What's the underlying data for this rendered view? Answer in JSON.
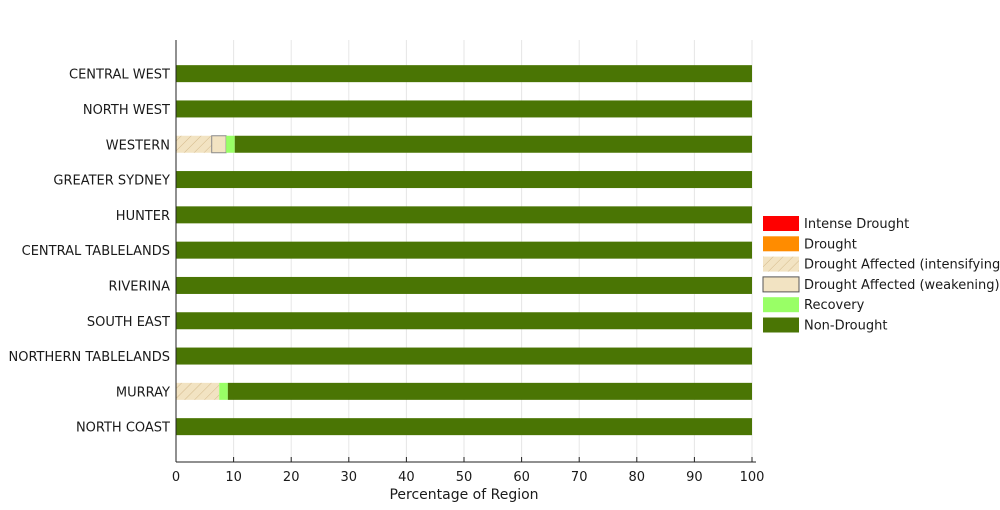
{
  "chart_data": {
    "type": "bar",
    "orientation": "horizontal",
    "stacked": true,
    "xlabel": "Percentage of Region",
    "ylabel": "",
    "xlim": [
      0,
      100
    ],
    "xticks": [
      0,
      10,
      20,
      30,
      40,
      50,
      60,
      70,
      80,
      90,
      100
    ],
    "grid": true,
    "legend_position": "right",
    "categories": [
      "CENTRAL WEST",
      "NORTH WEST",
      "WESTERN",
      "GREATER SYDNEY",
      "HUNTER",
      "CENTRAL TABLELANDS",
      "RIVERINA",
      "SOUTH EAST",
      "NORTHERN TABLELANDS",
      "MURRAY",
      "NORTH COAST"
    ],
    "series": [
      {
        "name": "Intense Drought",
        "color": "#ff0000",
        "pattern": "solid",
        "values": [
          0,
          0,
          0,
          0,
          0,
          0,
          0,
          0,
          0,
          0,
          0
        ]
      },
      {
        "name": "Drought",
        "color": "#ff8c00",
        "pattern": "solid",
        "values": [
          0,
          0,
          0,
          0,
          0,
          0,
          0,
          0,
          0,
          0,
          0
        ]
      },
      {
        "name": "Drought Affected (intensifying)",
        "color": "#f2e3c2",
        "pattern": "hatch",
        "values": [
          0,
          0,
          6.2,
          0,
          0,
          0,
          0,
          0,
          0,
          7.5,
          0
        ]
      },
      {
        "name": "Drought Affected (weakening)",
        "color": "#f2e3c2",
        "pattern": "outline",
        "values": [
          0,
          0,
          2.5,
          0,
          0,
          0,
          0,
          0,
          0,
          0,
          0
        ]
      },
      {
        "name": "Recovery",
        "color": "#99ff66",
        "pattern": "solid",
        "values": [
          0,
          0,
          1.5,
          0,
          0,
          0,
          0,
          0,
          0,
          1.5,
          0
        ]
      },
      {
        "name": "Non-Drought",
        "color": "#4a7504",
        "pattern": "solid",
        "values": [
          100,
          100,
          89.8,
          100,
          100,
          100,
          100,
          100,
          100,
          91,
          100
        ]
      }
    ]
  }
}
